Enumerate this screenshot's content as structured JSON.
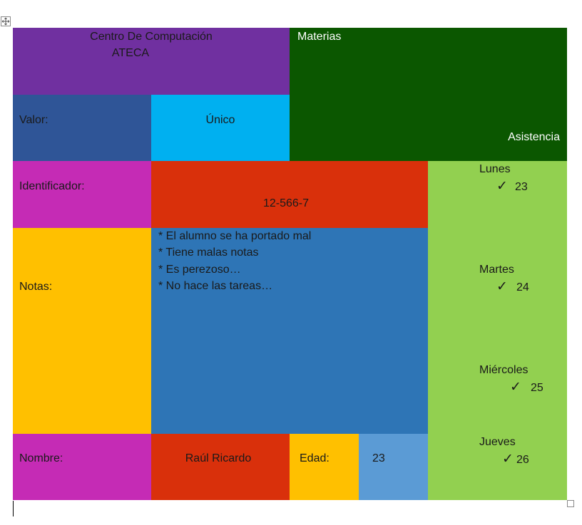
{
  "header": {
    "center_line1": "Centro De Computación",
    "center_line2": "ATECA",
    "materias": "Materias",
    "asistencia": "Asistencia"
  },
  "valor": {
    "label": "Valor:",
    "value": "Único"
  },
  "identificador": {
    "label": "Identificador:",
    "value": "12-566-7"
  },
  "notas": {
    "label": "Notas:",
    "lines": [
      "* El alumno se ha portado mal",
      "* Tiene malas notas",
      "* Es perezoso…",
      "* No hace las tareas…"
    ]
  },
  "nombre": {
    "label": "Nombre:",
    "value": "Raúl Ricardo"
  },
  "edad": {
    "label": "Edad:",
    "value": "23"
  },
  "asistencia_days": [
    {
      "day": "Lunes",
      "check": "✓",
      "num": "23"
    },
    {
      "day": "Martes",
      "check": "✓",
      "num": "24"
    },
    {
      "day": "Miércoles",
      "check": "✓",
      "num": "25"
    },
    {
      "day": "Jueves",
      "check": "✓",
      "num": "26"
    }
  ],
  "colors": {
    "purple": "#7030A0",
    "dark_green": "#0B5700",
    "steel_blue": "#2F5597",
    "cyan": "#00B0F0",
    "magenta": "#C52BB5",
    "red_orange": "#D9300B",
    "light_green": "#92D050",
    "yellow": "#FFC000",
    "mid_blue": "#2E75B6",
    "light_blue": "#5B9BD5"
  },
  "icons": {
    "table_move": "table-move-handle-icon",
    "table_resize": "table-resize-handle-icon"
  }
}
